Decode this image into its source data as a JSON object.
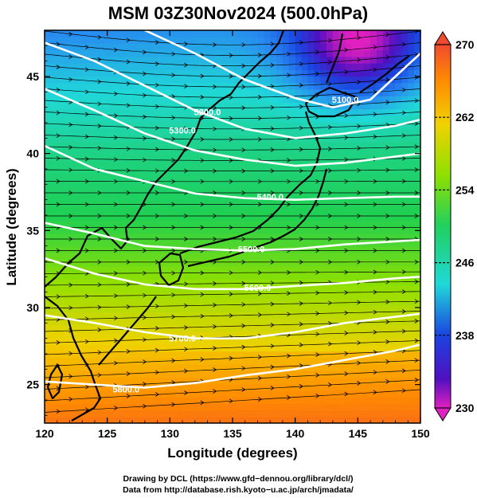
{
  "title": "MSM 03Z30Nov2024 (500.0hPa)",
  "axes": {
    "xlabel": "Longitude (degrees)",
    "ylabel": "Latitude  (degrees)",
    "xlim": [
      120,
      150
    ],
    "ylim": [
      22.5,
      48
    ],
    "xticks": [
      "120",
      "125",
      "130",
      "135",
      "140",
      "145",
      "150"
    ],
    "yticks": [
      "25",
      "30",
      "35",
      "40",
      "45"
    ]
  },
  "colorbar": {
    "range": [
      230,
      270
    ],
    "ticks": [
      "270",
      "262",
      "254",
      "246",
      "238",
      "230"
    ]
  },
  "contours": [
    {
      "label": "5100.0",
      "lon": 144,
      "lat": 43.5
    },
    {
      "label": "5200.0",
      "lon": 133,
      "lat": 42.7
    },
    {
      "label": "5300.0",
      "lon": 131,
      "lat": 41.5
    },
    {
      "label": "5400.0",
      "lon": 138,
      "lat": 37.2
    },
    {
      "label": "5500.0",
      "lon": 136.5,
      "lat": 33.8
    },
    {
      "label": "5600.0",
      "lon": 137,
      "lat": 31.3
    },
    {
      "label": "5700.0",
      "lon": 131,
      "lat": 28.0
    },
    {
      "label": "5800.0",
      "lon": 126.5,
      "lat": 24.7
    }
  ],
  "credits": {
    "line1": "Drawing by DCL (https://www.gfd−dennou.org/library/dcl/)",
    "line2": "Data from http://database.rish.kyoto−u.ac.jp/arch/jmadata/"
  }
}
